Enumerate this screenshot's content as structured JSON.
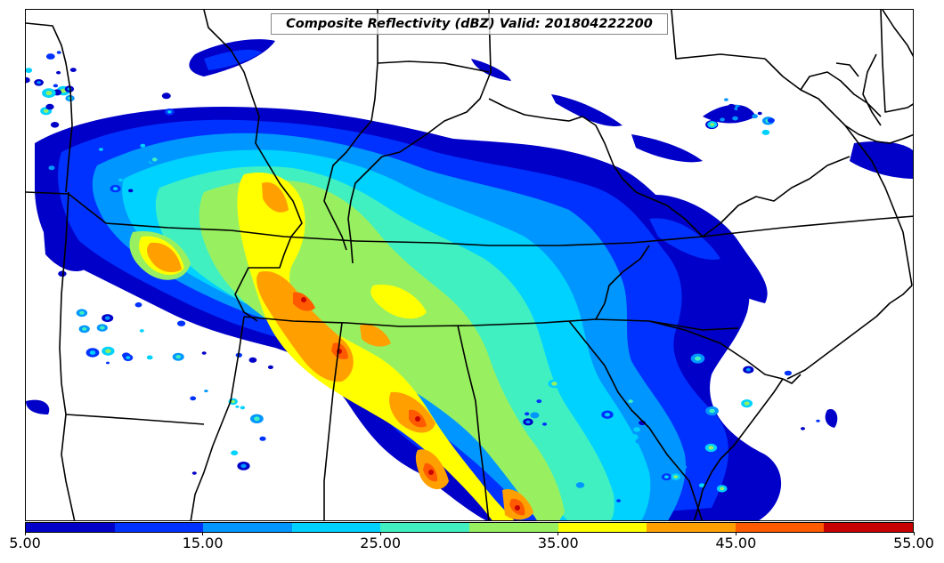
{
  "title": "Composite Reflectivity (dBZ) Valid: 201804222200",
  "colorbar": {
    "colors": [
      "#0000c8",
      "#0032ff",
      "#0096ff",
      "#00d2ff",
      "#40f0c0",
      "#98f060",
      "#ffff00",
      "#ffa000",
      "#ff5a00",
      "#c80000"
    ],
    "labels": [
      "5.00",
      "15.00",
      "25.00",
      "35.00",
      "45.00",
      "55.00"
    ]
  },
  "chart_data": {
    "type": "heatmap",
    "title": "Composite Reflectivity (dBZ) Valid: 201804222200",
    "variable": "Composite Reflectivity",
    "units": "dBZ",
    "valid_time": "201804222200",
    "levels": [
      5,
      10,
      15,
      20,
      25,
      30,
      35,
      40,
      45,
      50,
      55
    ],
    "colorbar_ticks": [
      5,
      15,
      25,
      35,
      45,
      55
    ]
  }
}
